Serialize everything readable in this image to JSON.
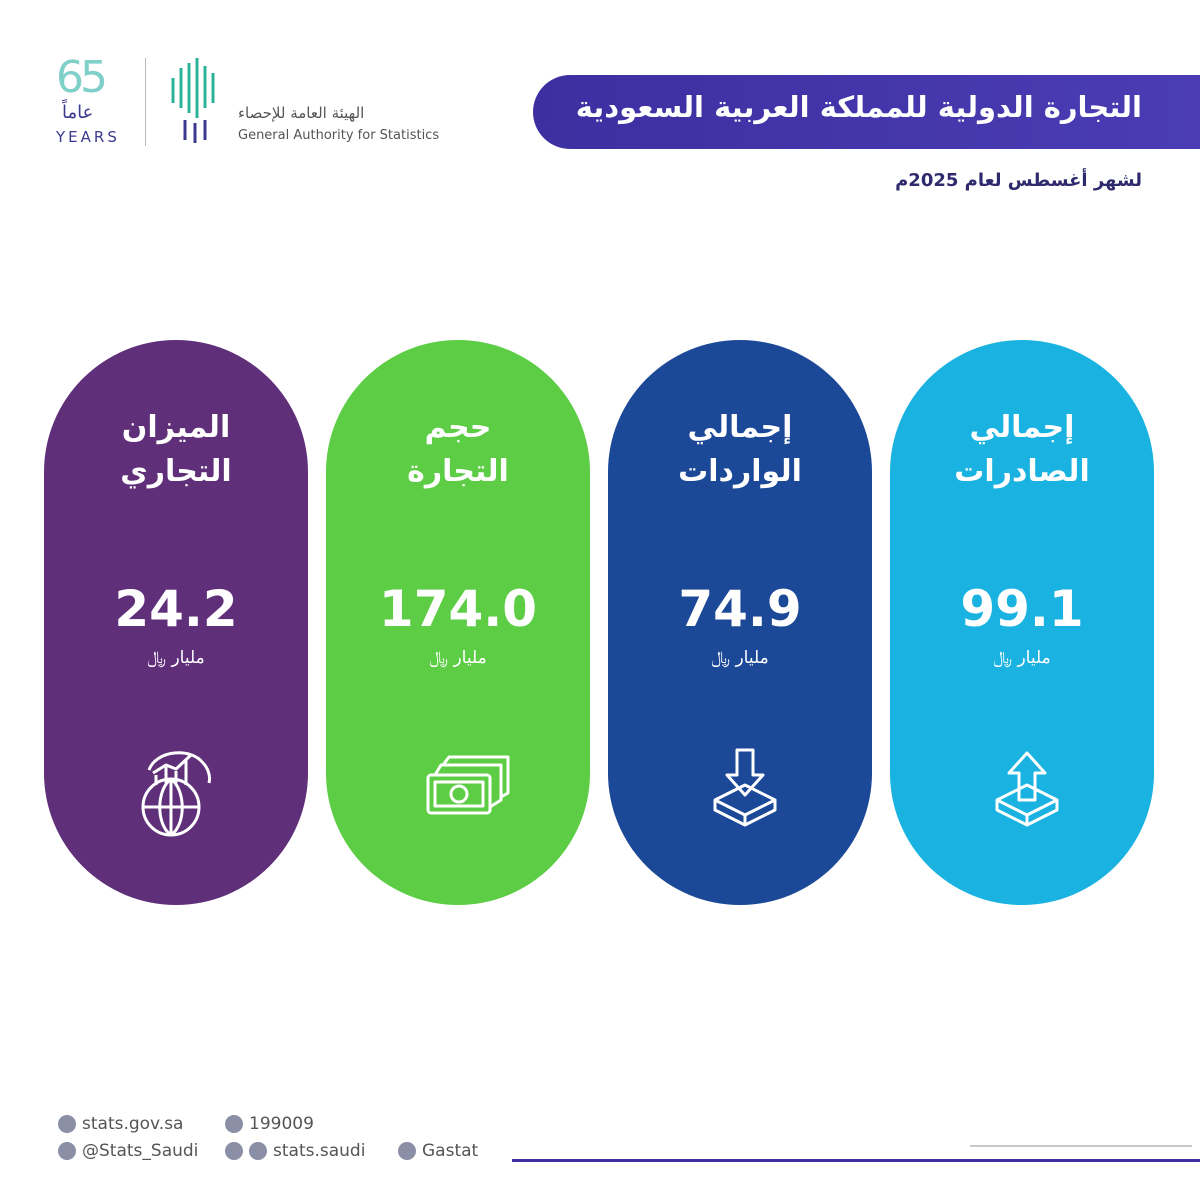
{
  "logo": {
    "number": "65",
    "years_ar": "عاماً",
    "years_en": "YEARS",
    "org_ar": "الهيئة العامة للإحصاء",
    "org_en": "General Authority for Statistics"
  },
  "header": {
    "title": "التجارة الدولية للمملكة العربية السعودية",
    "subtitle": "لشهر أغسطس لعام 2025م"
  },
  "cards": [
    {
      "label": [
        "إجمالي",
        "الصادرات"
      ],
      "value": "99.1",
      "unit": "مليار ﷼",
      "color": "#1ab2e0",
      "icon": "up"
    },
    {
      "label": [
        "إجمالي",
        "الواردات"
      ],
      "value": "74.9",
      "unit": "مليار ﷼",
      "color": "#1c4898",
      "icon": "down"
    },
    {
      "label": [
        "حجم",
        "التجارة"
      ],
      "value": "174.0",
      "unit": "مليار ﷼",
      "color": "#5ccd45",
      "icon": "money"
    },
    {
      "label": [
        "الميزان",
        "التجاري"
      ],
      "value": "24.2",
      "unit": "مليار ﷼",
      "color": "#5f2f79",
      "icon": "globe"
    }
  ],
  "footer": {
    "website": "stats.gov.sa",
    "phone": "199009",
    "x": "@Stats_Saudi",
    "social": "stats.saudi",
    "linkedin": "Gastat"
  }
}
